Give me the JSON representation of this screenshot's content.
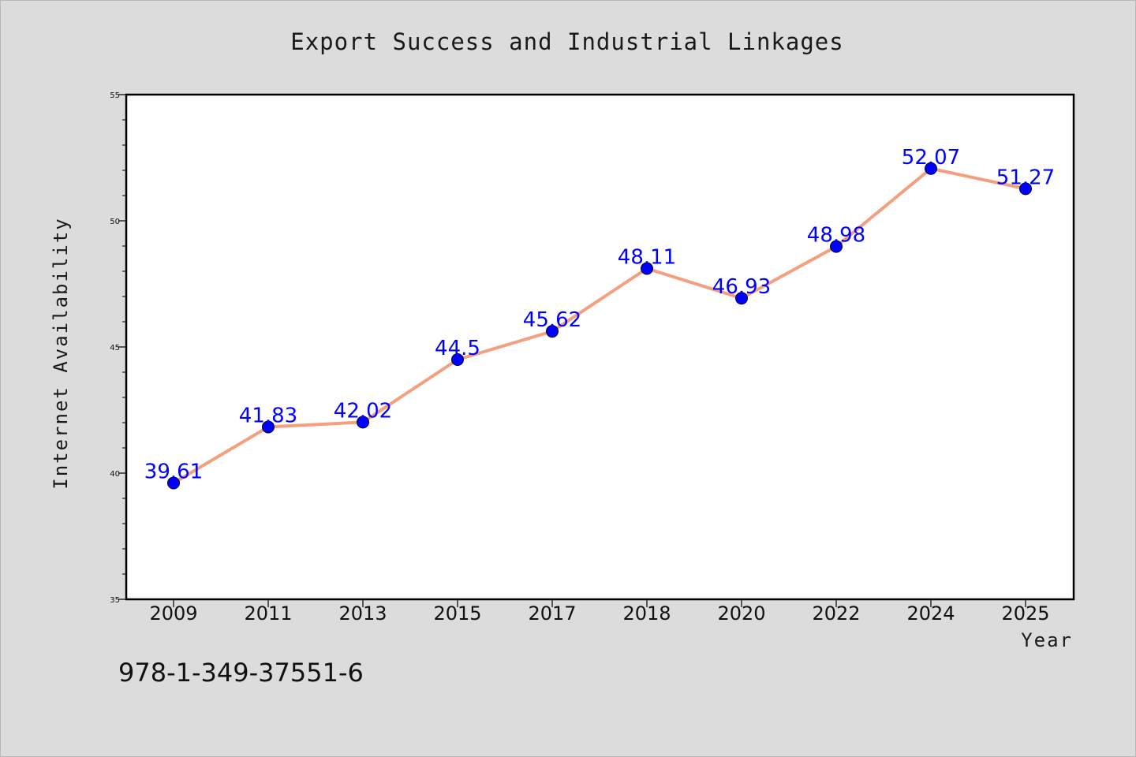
{
  "chart_data": {
    "type": "line",
    "title": "Export Success and Industrial Linkages",
    "xlabel": "Year",
    "ylabel": "Internet Availability",
    "categories": [
      "2009",
      "2011",
      "2013",
      "2015",
      "2017",
      "2018",
      "2020",
      "2022",
      "2024",
      "2025"
    ],
    "series": [
      {
        "values": [
          39.61,
          41.83,
          42.02,
          44.5,
          45.62,
          48.11,
          46.93,
          48.98,
          52.07,
          51.27
        ]
      }
    ],
    "data_labels": [
      "39.61",
      "41.83",
      "42.02",
      "44.5",
      "45.62",
      "48.11",
      "46.93",
      "48.98",
      "52.07",
      "51.27"
    ],
    "ylim": [
      35,
      55
    ],
    "yticks": [
      35,
      40,
      45,
      50,
      55
    ],
    "grid": false,
    "line_color": "#f4a07e",
    "marker_color": "#0000ff",
    "label_color": "#0000ff",
    "background_color": "#dcdcdc",
    "plot_background_color": "#ffffff"
  },
  "footer": {
    "code": "978-1-349-37551-6"
  }
}
